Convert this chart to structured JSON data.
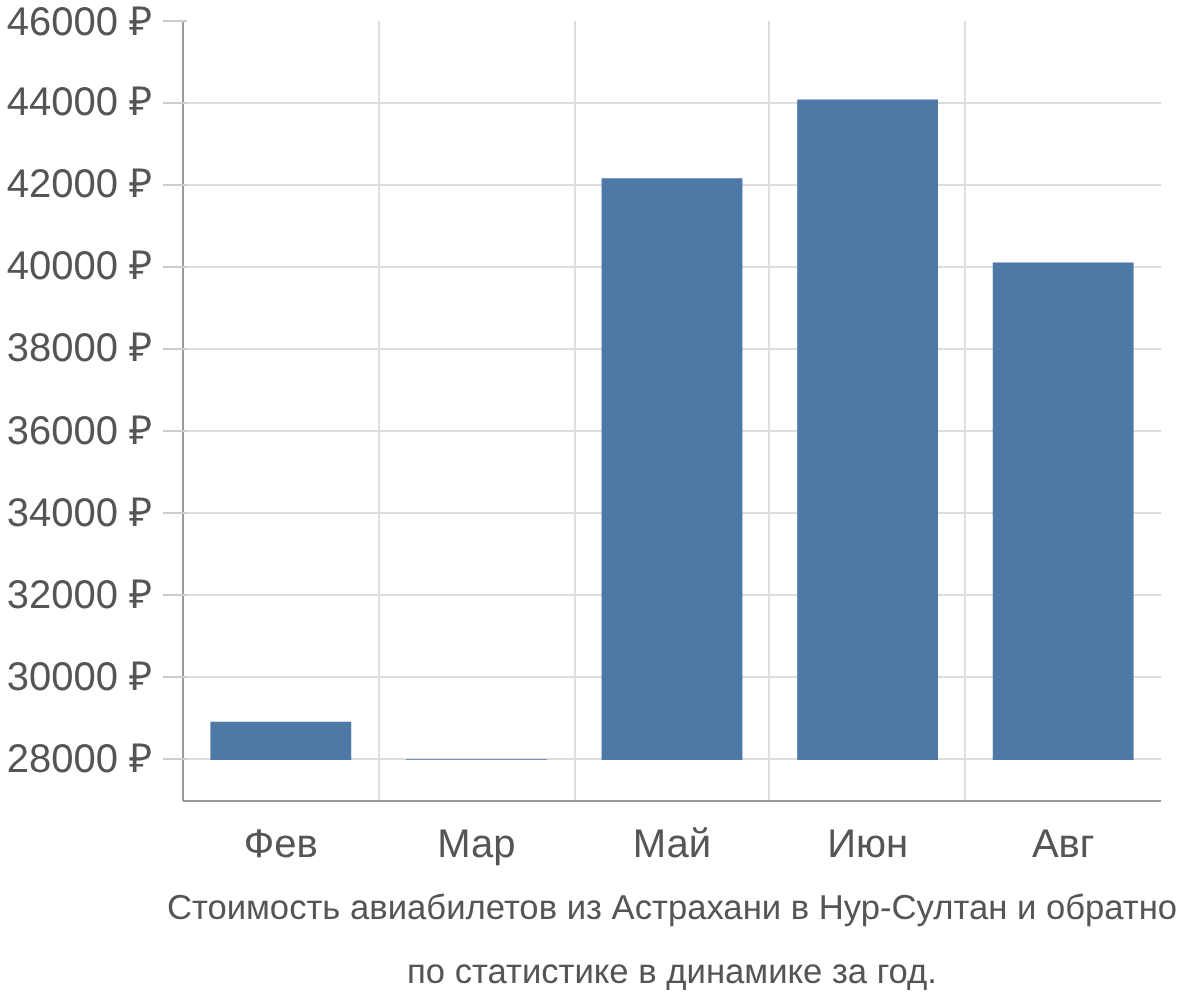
{
  "chart_data": {
    "type": "bar",
    "categories": [
      "Фев",
      "Мар",
      "Май",
      "Июн",
      "Авг"
    ],
    "base": [
      28000,
      28000,
      28000,
      28000,
      28000
    ],
    "values": [
      930,
      20,
      14170,
      16090,
      12120
    ],
    "color": "#4e79a7",
    "ylim": [
      27000,
      46000
    ],
    "yticks": [
      {
        "value": 28000,
        "label": "28000 ₽"
      },
      {
        "value": 30000,
        "label": "30000 ₽"
      },
      {
        "value": 32000,
        "label": "32000 ₽"
      },
      {
        "value": 34000,
        "label": "34000 ₽"
      },
      {
        "value": 36000,
        "label": "36000 ₽"
      },
      {
        "value": 38000,
        "label": "38000 ₽"
      },
      {
        "value": 40000,
        "label": "40000 ₽"
      },
      {
        "value": 42000,
        "label": "42000 ₽"
      },
      {
        "value": 44000,
        "label": "44000 ₽"
      },
      {
        "value": 46000,
        "label": "46000 ₽"
      }
    ],
    "grid": true,
    "annotations": [
      "Стоимость авиабилетов из Астрахани в Нур-Султан и обратно",
      "по статистике в динамике за год."
    ]
  }
}
